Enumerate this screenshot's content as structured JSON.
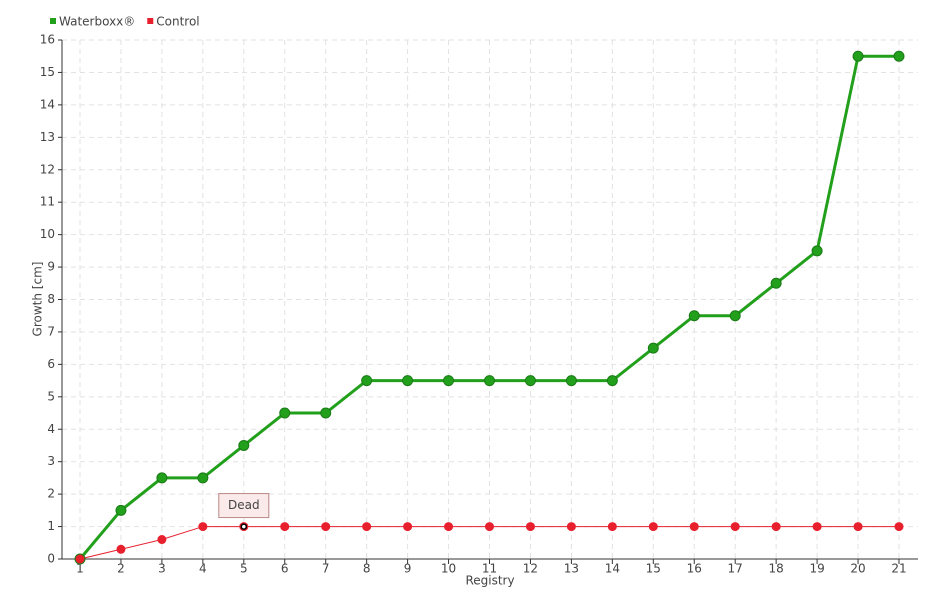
{
  "chart_data": {
    "type": "line",
    "x_label": "Registry",
    "y_label": "Growth [cm]",
    "categories": [
      "1",
      "2",
      "3",
      "4",
      "5",
      "6",
      "7",
      "8",
      "9",
      "10",
      "11",
      "12",
      "13",
      "14",
      "15",
      "16",
      "17",
      "18",
      "19",
      "20",
      "21"
    ],
    "series": [
      {
        "name": "Waterboxx®",
        "color": "#22a01c",
        "values": [
          0,
          1.5,
          2.5,
          2.5,
          3.5,
          4.5,
          4.5,
          5.5,
          5.5,
          5.5,
          5.5,
          5.5,
          5.5,
          5.5,
          6.5,
          7.5,
          7.5,
          8.5,
          9.5,
          15.5,
          15.5
        ]
      },
      {
        "name": "Control",
        "color": "#e8202e",
        "values": [
          0,
          0.3,
          0.6,
          1,
          1,
          1,
          1,
          1,
          1,
          1,
          1,
          1,
          1,
          1,
          1,
          1,
          1,
          1,
          1,
          1,
          1
        ]
      }
    ],
    "annotation": "Dead",
    "ylim": [
      0,
      16
    ],
    "yticks": [
      0,
      1,
      2,
      3,
      4,
      5,
      6,
      7,
      8,
      9,
      10,
      11,
      12,
      13,
      14,
      15,
      16
    ],
    "grid": true,
    "legend": "top-left"
  }
}
